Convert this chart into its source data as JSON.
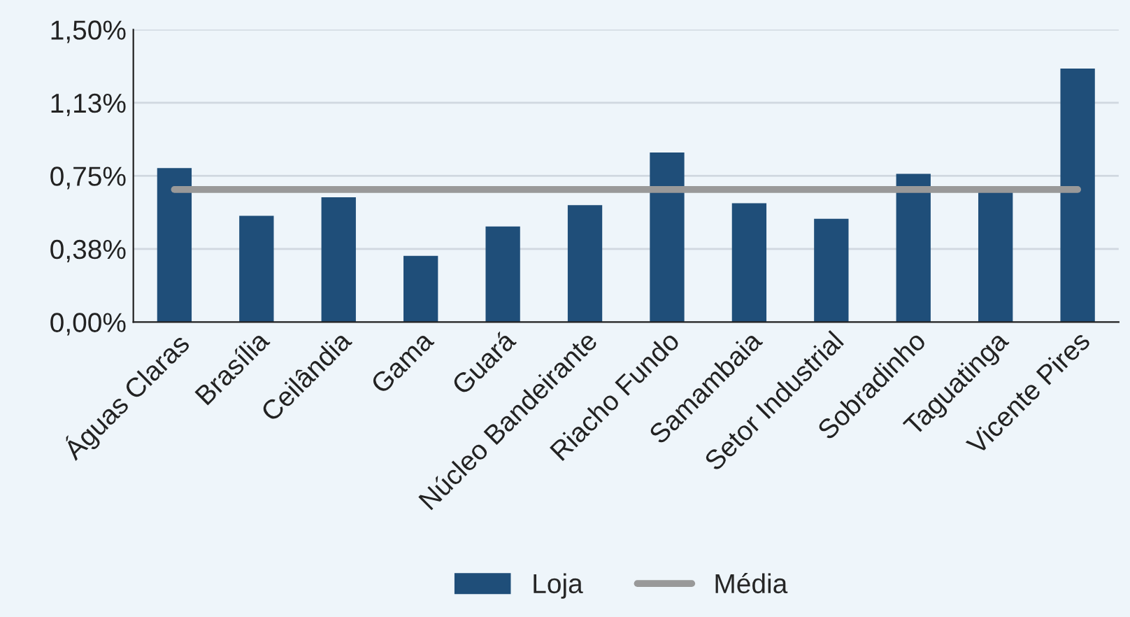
{
  "chart_data": {
    "type": "bar",
    "categories": [
      "Águas Claras",
      "Brasília",
      "Ceilândia",
      "Gama",
      "Guará",
      "Núcleo Bandeirante",
      "Riacho Fundo",
      "Samambaia",
      "Setor Industrial",
      "Sobradinho",
      "Taguatinga",
      "Vicente Pires"
    ],
    "series": [
      {
        "name": "Loja",
        "color": "#1f4e79",
        "values": [
          0.79,
          0.545,
          0.64,
          0.34,
          0.49,
          0.6,
          0.87,
          0.61,
          0.53,
          0.76,
          0.68,
          1.3
        ]
      },
      {
        "name": "Média",
        "type": "line",
        "color": "#999999",
        "values": [
          0.68,
          0.68,
          0.68,
          0.68,
          0.68,
          0.68,
          0.68,
          0.68,
          0.68,
          0.68,
          0.68,
          0.68
        ]
      }
    ],
    "ylim": [
      0,
      1.5
    ],
    "yticks": [
      {
        "value": 0,
        "label": "0,00%"
      },
      {
        "value": 0.375,
        "label": "0,38%"
      },
      {
        "value": 0.75,
        "label": "0,75%"
      },
      {
        "value": 1.125,
        "label": "1,13%"
      },
      {
        "value": 1.5,
        "label": "1,50%"
      }
    ],
    "grid": "y",
    "legend": "bottom",
    "marker": "none",
    "line_style": "solid"
  }
}
